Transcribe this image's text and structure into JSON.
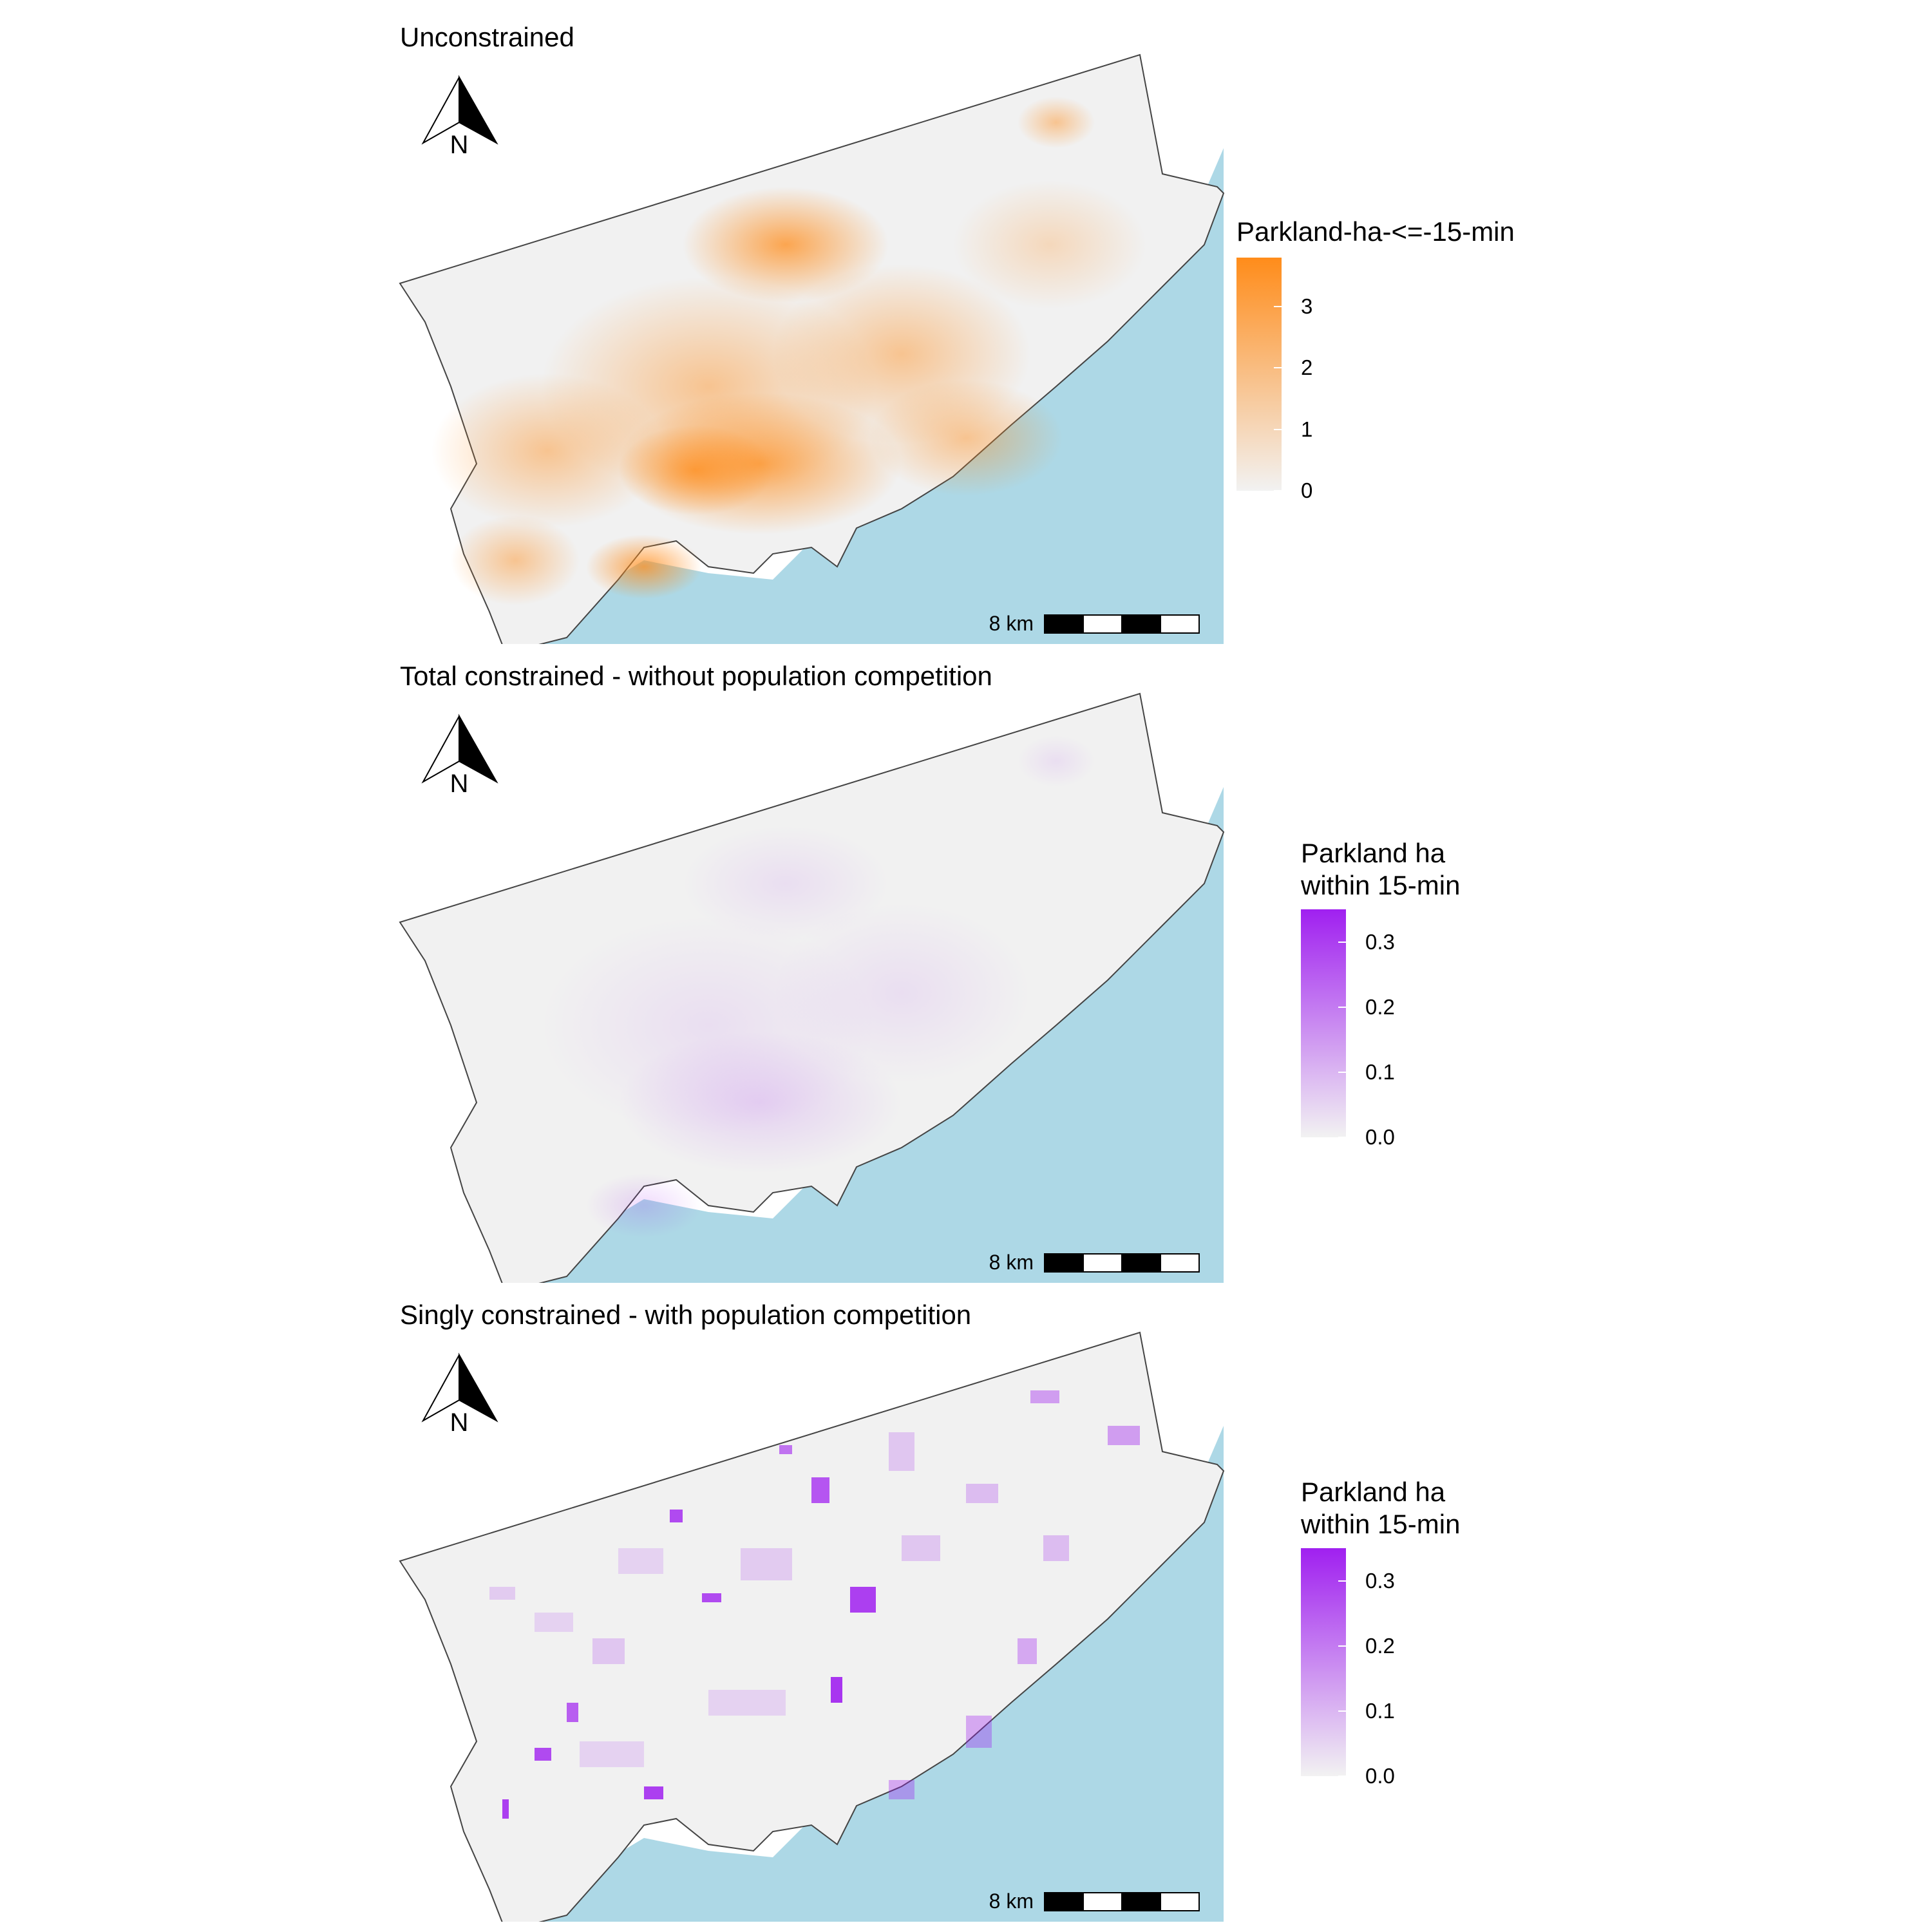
{
  "panels": [
    {
      "title": "Unconstrained",
      "north_label": "N",
      "scalebar_label": "8 km",
      "legend": {
        "title_line1": "Parkland-ha-<=-15-min",
        "title_line2": "",
        "ticks": [
          "3",
          "2",
          "1",
          "0"
        ],
        "tick_values": [
          3,
          2,
          1,
          0
        ],
        "max": 3.8,
        "color_high": "#FF8C1A",
        "color_low": "#F2F2F2"
      }
    },
    {
      "title": "Total constrained - without population competition",
      "north_label": "N",
      "scalebar_label": "8 km",
      "legend": {
        "title_line1": "Parkland ha",
        "title_line2": "within 15-min",
        "ticks": [
          "0.3",
          "0.2",
          "0.1",
          "0.0"
        ],
        "tick_values": [
          0.3,
          0.2,
          0.1,
          0.0
        ],
        "max": 0.35,
        "color_high": "#A020F0",
        "color_low": "#F2F2F2"
      }
    },
    {
      "title": "Singly constrained - with population competition",
      "north_label": "N",
      "scalebar_label": "8 km",
      "legend": {
        "title_line1": "Parkland ha",
        "title_line2": "within 15-min",
        "ticks": [
          "0.3",
          "0.2",
          "0.1",
          "0.0"
        ],
        "tick_values": [
          0.3,
          0.2,
          0.1,
          0.0
        ],
        "max": 0.35,
        "color_high": "#A020F0",
        "color_low": "#F2F2F2"
      }
    }
  ],
  "colors": {
    "water": "#ADD8E6",
    "land": "#F1F1F1",
    "outline": "#444444",
    "orange": "#FF8C1A",
    "purple": "#A020F0"
  }
}
